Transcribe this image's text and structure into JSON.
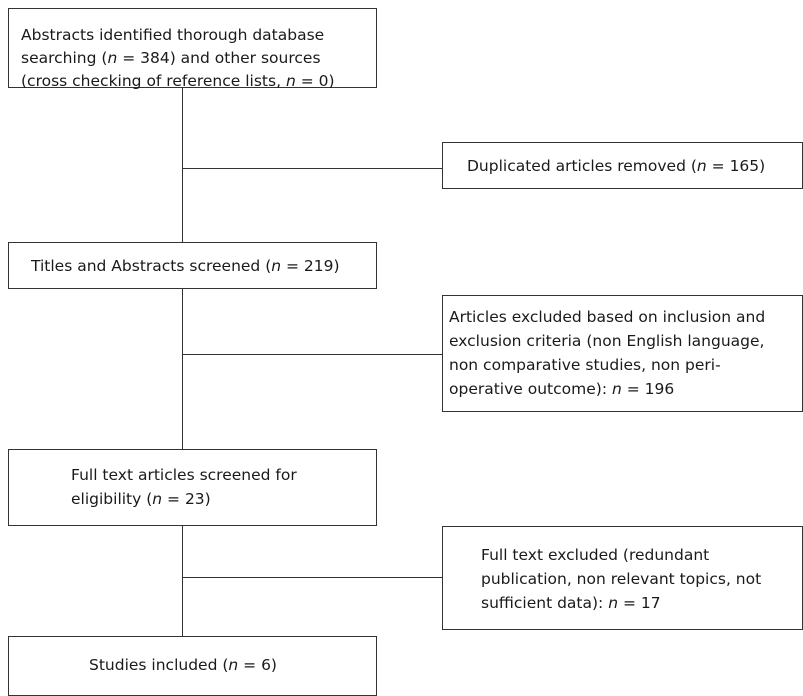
{
  "flow": {
    "identified": {
      "line1": "Abstracts identified thorough database",
      "line2_a": "searching (",
      "line2_n": "n",
      "line2_b": " = 384) and other sources",
      "line3_a": "(cross checking of reference lists, ",
      "line3_n": "n",
      "line3_b": " = 0)"
    },
    "duplicates": {
      "text_a": "Duplicated articles removed (",
      "n": "n",
      "text_b": " = 165)"
    },
    "screened": {
      "text_a": "Titles and Abstracts screened (",
      "n": "n",
      "text_b": " = 219)"
    },
    "excluded": {
      "line1": "Articles excluded based on inclusion and",
      "line2": "exclusion criteria (non English language,",
      "line3": "non comparative studies, non peri-",
      "line4_a": "operative outcome): ",
      "line4_n": "n",
      "line4_b": " = 196"
    },
    "fulltext": {
      "line1": "Full text articles screened for",
      "line2_a": "eligibility (",
      "line2_n": "n",
      "line2_b": " = 23)"
    },
    "fulltext_excluded": {
      "line1": "Full text excluded (redundant",
      "line2": "publication, non relevant topics, not",
      "line3_a": "sufficient data): ",
      "line3_n": "n",
      "line3_b": " = 17"
    },
    "included": {
      "text_a": "Studies included (",
      "n": "n",
      "text_b": " = 6)"
    }
  }
}
